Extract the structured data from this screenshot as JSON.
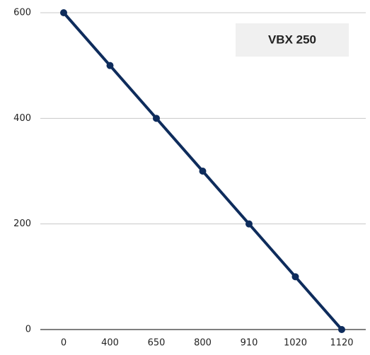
{
  "chart_data": {
    "type": "line",
    "categories": [
      "0",
      "400",
      "650",
      "800",
      "910",
      "1020",
      "1120"
    ],
    "series": [
      {
        "name": "VBX 250",
        "color": "#0e2c5c",
        "values": [
          600,
          500,
          400,
          300,
          200,
          100,
          0
        ]
      }
    ],
    "ylim": [
      0,
      600
    ],
    "yticks": [
      0,
      200,
      400,
      600
    ],
    "grid": true,
    "legend": "top-right"
  }
}
